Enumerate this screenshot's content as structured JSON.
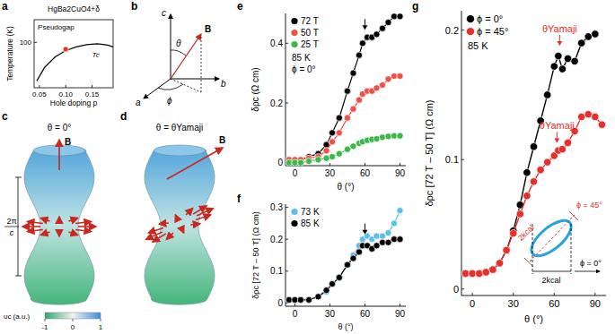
{
  "panel_labels": [
    "a",
    "b",
    "c",
    "d",
    "e",
    "f",
    "g"
  ],
  "diagrams": {
    "b": {
      "labels": [
        "c",
        "a",
        "b",
        "B",
        "θ",
        "ϕ"
      ]
    },
    "c": {
      "title": "θ = 0°",
      "field": "B",
      "period": [
        "2π",
        "c"
      ]
    },
    "d": {
      "title": "θ = θYamaji",
      "field": "B"
    },
    "colorbar": {
      "label": "υc (a.u.)",
      "range": [
        -1,
        1
      ],
      "ticks": [
        -1,
        0,
        1
      ]
    },
    "g_inset": {
      "labels": [
        "2kcal",
        "2kcal",
        "ϕ = 45°",
        "ϕ = 0°"
      ]
    }
  },
  "chart_data": [
    {
      "type": "line",
      "title": "HgBa2CuO4+δ",
      "x_label": "Hole doping p",
      "y_label": "Temperature (K)",
      "xlim": [
        0.04,
        0.19
      ],
      "ylim": [
        0,
        150
      ],
      "xticks": [
        0.05,
        {
          "value": 0.1,
          "label": "0.10"
        },
        0.15
      ],
      "yticks": [
        100
      ],
      "series": [
        {
          "x": [
            0.045,
            0.06,
            0.08,
            0.1,
            0.12,
            0.14,
            0.16,
            0.18,
            0.19
          ],
          "values": [
            15,
            45,
            68,
            82,
            90,
            95,
            97,
            94,
            90
          ],
          "color": "#000000",
          "marker": "none",
          "line_style": "solid"
        },
        {
          "type": "scatter",
          "x": [
            0.1
          ],
          "values": [
            85
          ],
          "color": "#e8302a",
          "marker": "circle"
        }
      ],
      "labels": [
        {
          "text": "Pseudogap",
          "x": 0.047,
          "y": 128
        },
        {
          "text": "Tc",
          "x": 0.15,
          "y": 68
        }
      ]
    },
    {
      "type": "line",
      "x_label": "θ (°)",
      "y_label": "δρc (Ω cm)",
      "xlim": [
        -8,
        95
      ],
      "ylim": [
        -0.01,
        0.5
      ],
      "xticks": [
        0,
        30,
        60,
        90
      ],
      "yticks": [
        0,
        0.2,
        0.4
      ],
      "marker": "circle",
      "legend": "upper left",
      "notes": [
        "85 K",
        "ϕ = 0°"
      ],
      "x": [
        -5,
        0,
        5,
        12,
        20,
        27,
        32,
        38,
        45,
        50,
        55,
        58,
        62,
        66,
        70,
        75,
        80,
        85,
        90
      ],
      "series": [
        {
          "name": "72 T",
          "color": "#000000",
          "values": [
            0.01,
            0.01,
            0.01,
            0.02,
            0.03,
            0.06,
            0.1,
            0.15,
            0.24,
            0.3,
            0.36,
            0.4,
            0.42,
            0.42,
            0.43,
            0.45,
            0.47,
            0.49,
            0.49
          ]
        },
        {
          "name": "50 T",
          "color": "#f0504a",
          "values": [
            0.01,
            0.01,
            0.01,
            0.015,
            0.02,
            0.04,
            0.07,
            0.1,
            0.15,
            0.18,
            0.21,
            0.23,
            0.24,
            0.24,
            0.25,
            0.26,
            0.28,
            0.29,
            0.29
          ]
        },
        {
          "name": "25 T",
          "color": "#3cb84a",
          "values": [
            0,
            0,
            0,
            0.005,
            0.01,
            0.015,
            0.02,
            0.03,
            0.045,
            0.055,
            0.065,
            0.07,
            0.075,
            0.078,
            0.08,
            0.085,
            0.088,
            0.09,
            0.09
          ]
        }
      ],
      "arrows": [
        {
          "x": 60,
          "y": 0.445
        }
      ]
    },
    {
      "type": "line",
      "x_label": "θ (°)",
      "y_label": "δρc [72 T – 50 T] (Ω cm)",
      "xlim": [
        -8,
        95
      ],
      "ylim": [
        -0.01,
        0.31
      ],
      "xticks": [
        0,
        30,
        60,
        90
      ],
      "yticks": [
        0,
        0.1,
        0.2,
        0.3
      ],
      "marker": "circle",
      "legend": "upper left",
      "x": [
        -5,
        0,
        5,
        12,
        20,
        27,
        32,
        38,
        45,
        50,
        55,
        58,
        62,
        66,
        70,
        75,
        80,
        85,
        90
      ],
      "series": [
        {
          "name": "73 K",
          "color": "#5bbfe8",
          "values": [
            0.01,
            0.01,
            0.01,
            0.01,
            0.02,
            0.035,
            0.06,
            0.08,
            0.12,
            0.15,
            0.18,
            0.2,
            0.21,
            0.2,
            0.21,
            0.21,
            0.22,
            0.25,
            0.29
          ]
        },
        {
          "name": "85 K",
          "color": "#000000",
          "values": [
            0.01,
            0.01,
            0.01,
            0.01,
            0.02,
            0.04,
            0.06,
            0.08,
            0.12,
            0.14,
            0.16,
            0.18,
            0.18,
            0.17,
            0.18,
            0.19,
            0.19,
            0.2,
            0.2
          ]
        }
      ],
      "arrows": [
        {
          "x": 60,
          "y": 0.215
        }
      ]
    },
    {
      "type": "line",
      "x_label": "θ (°)",
      "y_label": "δρc [72 T – 50 T] (Ω cm)",
      "xlim": [
        -8,
        98
      ],
      "ylim": [
        -0.005,
        0.215
      ],
      "xticks": [
        0,
        30,
        60,
        90
      ],
      "yticks": [
        0,
        0.1,
        0.2
      ],
      "marker": "circle",
      "legend": "upper left",
      "notes": [
        "85 K"
      ],
      "x": [
        -5,
        0,
        5,
        10,
        15,
        20,
        25,
        30,
        35,
        40,
        45,
        50,
        55,
        60,
        63,
        66,
        70,
        75,
        80,
        85,
        90,
        95
      ],
      "series": [
        {
          "name": "ϕ = 0°",
          "color": "#000000",
          "values": [
            0.012,
            0.012,
            0.012,
            0.013,
            0.015,
            0.02,
            0.03,
            0.045,
            0.065,
            0.09,
            0.11,
            0.13,
            0.15,
            0.172,
            0.18,
            0.17,
            0.178,
            0.176,
            0.19,
            0.195,
            0.197,
            null
          ]
        },
        {
          "name": "ϕ = 45°",
          "color": "#e8302a",
          "values": [
            0.012,
            0.012,
            0.012,
            0.013,
            0.015,
            0.02,
            0.03,
            0.043,
            0.058,
            0.072,
            0.083,
            0.092,
            0.098,
            0.103,
            0.107,
            0.108,
            0.113,
            0.122,
            0.133,
            0.135,
            0.133,
            0.127
          ]
        }
      ],
      "arrows": [
        {
          "x": 64,
          "y": 0.188,
          "text": "θYamaji"
        },
        {
          "x": 62,
          "y": 0.113,
          "text": "θYamaji"
        }
      ]
    }
  ]
}
